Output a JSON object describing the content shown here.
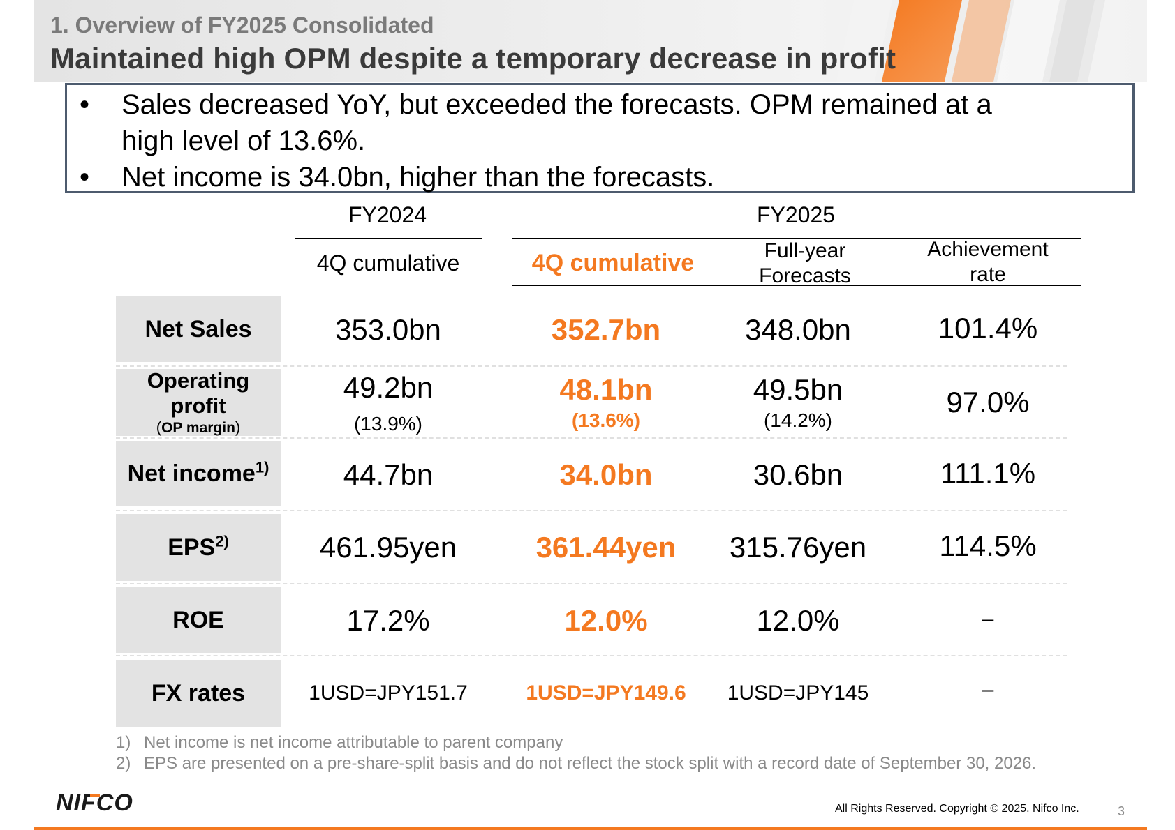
{
  "header": {
    "section": "1. Overview of FY2025 Consolidated",
    "title": "Maintained high OPM despite a temporary decrease in profit"
  },
  "summary": {
    "bullets": [
      {
        "marker": "•",
        "lines": [
          "Sales decreased YoY, but exceeded the forecasts. OPM remained at a",
          "high level of 13.6%."
        ]
      },
      {
        "marker": "•",
        "lines": [
          "Net income is 34.0bn, higher than the forecasts."
        ]
      }
    ]
  },
  "table": {
    "groups": {
      "fy2024": "FY2024",
      "fy2025": "FY2025"
    },
    "columns": {
      "fy2024_4q": "4Q cumulative",
      "fy2025_4q": "4Q cumulative",
      "forecast": [
        "Full-year",
        "Forecasts"
      ],
      "achievement": [
        "Achievement",
        "rate"
      ]
    },
    "rows": {
      "net_sales": {
        "label": "Net Sales",
        "fy2024": "353.0bn",
        "fy2025": "352.7bn",
        "forecast": "348.0bn",
        "achievement": "101.4%"
      },
      "operating_profit": {
        "label_lines": [
          "Operating",
          "profit"
        ],
        "sub_label": {
          "open": "(",
          "text": "OP margin",
          "close": ")"
        },
        "fy2024": "49.2bn",
        "fy2024_margin": "(13.9%)",
        "fy2025": "48.1bn",
        "fy2025_margin": "(13.6%)",
        "forecast": "49.5bn",
        "forecast_margin": "(14.2%)",
        "achievement": "97.0%"
      },
      "net_income": {
        "label": "Net income",
        "note": "1)",
        "fy2024": "44.7bn",
        "fy2025": "34.0bn",
        "forecast": "30.6bn",
        "achievement": "111.1%"
      },
      "eps": {
        "label": "EPS",
        "note": "2)",
        "fy2024": "461.95yen",
        "fy2025": "361.44yen",
        "forecast": "315.76yen",
        "achievement": "114.5%"
      },
      "roe": {
        "label": "ROE",
        "fy2024": "17.2%",
        "fy2025": "12.0%",
        "forecast": "12.0%",
        "achievement": "–"
      },
      "fx": {
        "label": "FX rates",
        "fy2024": "1USD=JPY151.7",
        "fy2025": "1USD=JPY149.6",
        "forecast": "1USD=JPY145",
        "achievement": "–"
      }
    }
  },
  "footnotes": [
    {
      "num": "1)",
      "text": "Net income is net income attributable to parent company"
    },
    {
      "num": "2)",
      "text": "EPS are presented on a pre-share-split basis and do not reflect the stock split with a record date of September 30, 2026."
    }
  ],
  "footer": {
    "logo_text": "NIFCO",
    "copyright": "All Rights Reserved. Copyright © 2025. Nifco Inc.",
    "page_number": "3"
  },
  "colors": {
    "accent": "#f47920",
    "label_bg": "#e3e3e3",
    "box_border": "#4d5b6e",
    "title": "#3a3a3a",
    "section": "#7a7a7a"
  }
}
